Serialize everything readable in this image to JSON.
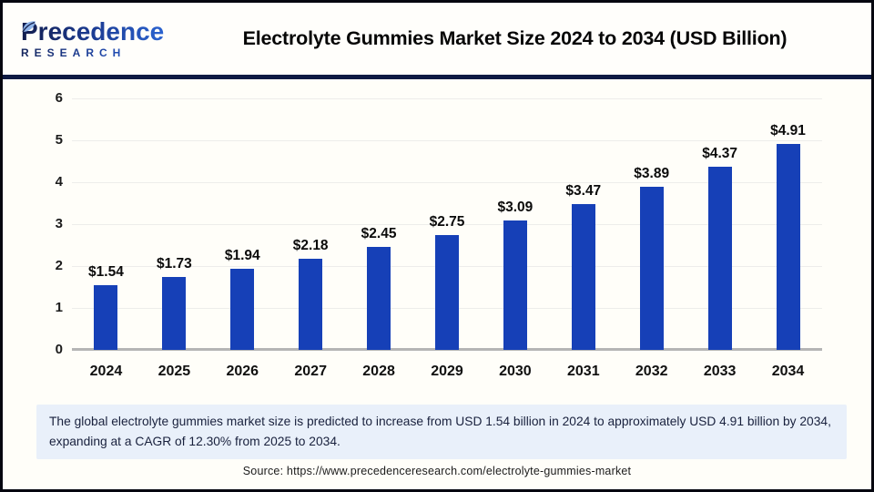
{
  "header": {
    "logo": {
      "name": "Precedence",
      "subname": "RESEARCH"
    },
    "title": "Electrolyte Gummies Market Size 2024 to 2034 (USD Billion)"
  },
  "chart_data": {
    "type": "bar",
    "title": "Electrolyte Gummies Market Size 2024 to 2034 (USD Billion)",
    "categories": [
      "2024",
      "2025",
      "2026",
      "2027",
      "2028",
      "2029",
      "2030",
      "2031",
      "2032",
      "2033",
      "2034"
    ],
    "values": [
      1.54,
      1.73,
      1.94,
      2.18,
      2.45,
      2.75,
      3.09,
      3.47,
      3.89,
      4.37,
      4.91
    ],
    "labels": [
      "$1.54",
      "$1.73",
      "$1.94",
      "$2.18",
      "$2.45",
      "$2.75",
      "$3.09",
      "$3.47",
      "$3.89",
      "$4.37",
      "$4.91"
    ],
    "unit": "USD Billion",
    "xlabel": "",
    "ylabel": "",
    "ylim": [
      0,
      6
    ],
    "yticks": [
      0,
      1,
      2,
      3,
      4,
      5,
      6
    ],
    "grid": true,
    "legend": "none",
    "bar_color": "#1640B7"
  },
  "summary": {
    "text": "The global electrolyte gummies market size is predicted to increase from USD 1.54 billion in 2024 to approximately USD 4.91 billion by 2034, expanding at a CAGR of 12.30% from 2025 to 2034."
  },
  "source": {
    "text": "Source: https://www.precedenceresearch.com/electrolyte-gummies-market"
  },
  "colors": {
    "bar": "#1640B7",
    "separator": "#0E1A43",
    "summary_bg": "#E9F0FA",
    "page_bg": "#FFFEF9",
    "gridline": "#EDEDEB",
    "baseline": "#B5B5B5"
  }
}
